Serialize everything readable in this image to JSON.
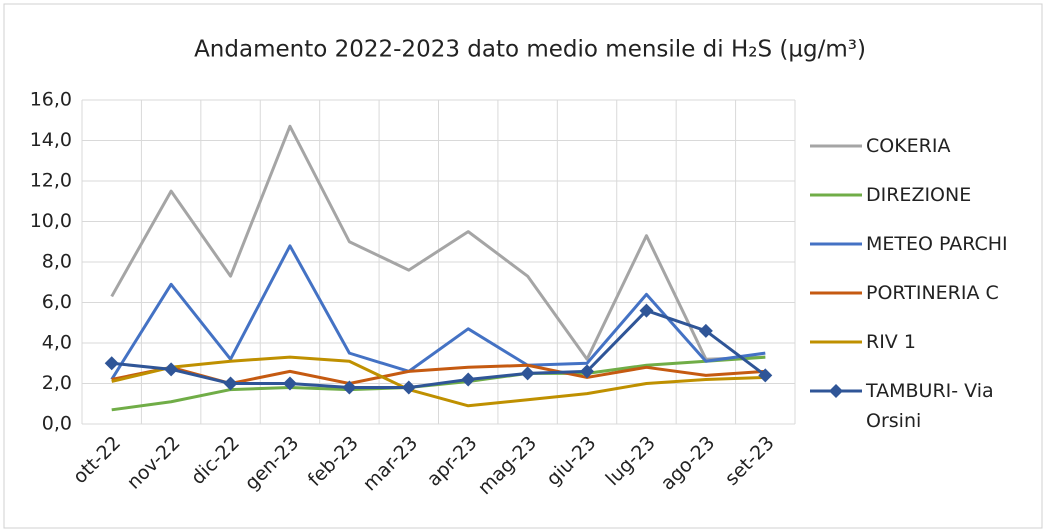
{
  "chart_data": {
    "type": "line",
    "title": "Andamento 2022-2023 dato medio mensile di H₂S (µg/m³)",
    "categories": [
      "ott-22",
      "nov-22",
      "dic-22",
      "gen-23",
      "feb-23",
      "mar-23",
      "apr-23",
      "mag-23",
      "giu-23",
      "lug-23",
      "ago-23",
      "set-23"
    ],
    "series": [
      {
        "name": "COKERIA",
        "color": "#a5a5a5",
        "values": [
          6.3,
          11.5,
          7.3,
          14.7,
          9.0,
          7.6,
          9.5,
          7.3,
          3.2,
          9.3,
          3.2,
          3.3
        ]
      },
      {
        "name": "DIREZIONE",
        "color": "#70ad47",
        "values": [
          0.7,
          1.1,
          1.7,
          1.8,
          1.7,
          1.8,
          2.1,
          2.5,
          2.5,
          2.9,
          3.1,
          3.3
        ]
      },
      {
        "name": "METEO PARCHI",
        "color": "#4472c4",
        "values": [
          2.2,
          6.9,
          3.2,
          8.8,
          3.5,
          2.6,
          4.7,
          2.9,
          3.0,
          6.4,
          3.1,
          3.5
        ]
      },
      {
        "name": "PORTINERIA C",
        "color": "#c55a11",
        "values": [
          2.2,
          2.8,
          2.0,
          2.6,
          2.0,
          2.6,
          2.8,
          2.9,
          2.3,
          2.8,
          2.4,
          2.6
        ]
      },
      {
        "name": "RIV 1",
        "color": "#bf9000",
        "values": [
          2.1,
          2.8,
          3.1,
          3.3,
          3.1,
          1.7,
          0.9,
          1.2,
          1.5,
          2.0,
          2.2,
          2.3
        ]
      },
      {
        "name": "TAMBURI- Via Orsini",
        "color": "#2f5597",
        "marker": "diamond",
        "values": [
          3.0,
          2.7,
          2.0,
          2.0,
          1.8,
          1.8,
          2.2,
          2.5,
          2.6,
          5.6,
          4.6,
          2.4
        ]
      }
    ],
    "ylim": [
      0,
      16
    ],
    "yticks": [
      {
        "value": 0,
        "label": "0,0"
      },
      {
        "value": 2,
        "label": "2,0"
      },
      {
        "value": 4,
        "label": "4,0"
      },
      {
        "value": 6,
        "label": "6,0"
      },
      {
        "value": 8,
        "label": "8,0"
      },
      {
        "value": 10,
        "label": "10,0"
      },
      {
        "value": 12,
        "label": "12,0"
      },
      {
        "value": 14,
        "label": "14,0"
      },
      {
        "value": 16,
        "label": "16,0"
      }
    ],
    "grid": true,
    "legend": "right"
  }
}
